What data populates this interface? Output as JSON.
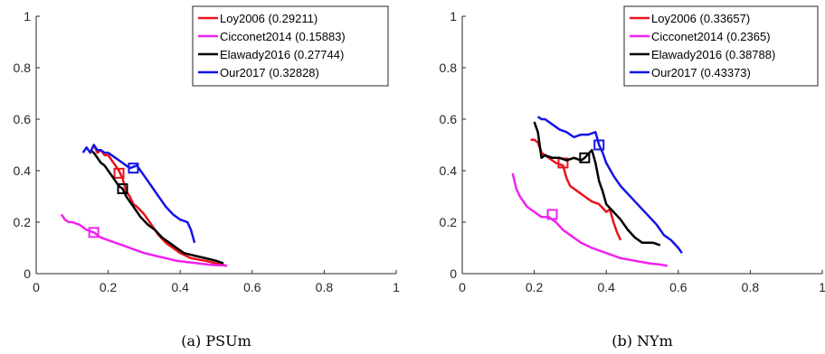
{
  "chart_data": [
    {
      "type": "line",
      "caption": "(a) PSUm",
      "xlim": [
        0,
        1
      ],
      "ylim": [
        0,
        1
      ],
      "xticks": [
        "0",
        "0.2",
        "0.4",
        "0.6",
        "0.8",
        "1"
      ],
      "yticks": [
        "0",
        "0.2",
        "0.4",
        "0.6",
        "0.8",
        "1"
      ],
      "legend_position": "top-right",
      "series": [
        {
          "name": "Loy2006 (0.29211)",
          "color": "#e8141a",
          "x": [
            0.15,
            0.16,
            0.17,
            0.18,
            0.19,
            0.2,
            0.21,
            0.22,
            0.23,
            0.24,
            0.25,
            0.26,
            0.27,
            0.28,
            0.3,
            0.32,
            0.34,
            0.36,
            0.38,
            0.4,
            0.43,
            0.47,
            0.5,
            0.53
          ],
          "y": [
            0.47,
            0.5,
            0.47,
            0.48,
            0.46,
            0.46,
            0.44,
            0.42,
            0.4,
            0.37,
            0.32,
            0.3,
            0.27,
            0.26,
            0.23,
            0.19,
            0.15,
            0.12,
            0.1,
            0.08,
            0.06,
            0.05,
            0.04,
            0.03
          ],
          "marker": [
            0.23,
            0.39
          ]
        },
        {
          "name": "Cicconet2014 (0.15883)",
          "color": "#ef22ef",
          "x": [
            0.07,
            0.08,
            0.09,
            0.1,
            0.12,
            0.14,
            0.16,
            0.18,
            0.2,
            0.22,
            0.24,
            0.26,
            0.28,
            0.3,
            0.33,
            0.36,
            0.39,
            0.42,
            0.45,
            0.48,
            0.5,
            0.52,
            0.53
          ],
          "y": [
            0.23,
            0.21,
            0.2,
            0.2,
            0.19,
            0.17,
            0.16,
            0.14,
            0.13,
            0.12,
            0.11,
            0.1,
            0.09,
            0.08,
            0.07,
            0.06,
            0.05,
            0.045,
            0.04,
            0.035,
            0.033,
            0.032,
            0.03
          ],
          "marker": [
            0.16,
            0.16
          ]
        },
        {
          "name": "Elawady2016 (0.27744)",
          "color": "#000000",
          "x": [
            0.15,
            0.16,
            0.17,
            0.18,
            0.19,
            0.2,
            0.21,
            0.22,
            0.23,
            0.24,
            0.25,
            0.27,
            0.29,
            0.31,
            0.33,
            0.35,
            0.37,
            0.39,
            0.41,
            0.44,
            0.47,
            0.5,
            0.52
          ],
          "y": [
            0.48,
            0.47,
            0.45,
            0.43,
            0.42,
            0.4,
            0.38,
            0.36,
            0.34,
            0.33,
            0.3,
            0.26,
            0.22,
            0.19,
            0.17,
            0.14,
            0.12,
            0.1,
            0.08,
            0.07,
            0.06,
            0.05,
            0.04
          ],
          "marker": [
            0.24,
            0.33
          ]
        },
        {
          "name": "Our2017 (0.32828)",
          "color": "#1414e6",
          "x": [
            0.13,
            0.14,
            0.15,
            0.16,
            0.17,
            0.18,
            0.19,
            0.2,
            0.22,
            0.24,
            0.26,
            0.28,
            0.3,
            0.32,
            0.34,
            0.36,
            0.38,
            0.4,
            0.42,
            0.43,
            0.44
          ],
          "y": [
            0.47,
            0.49,
            0.47,
            0.5,
            0.48,
            0.48,
            0.47,
            0.47,
            0.45,
            0.43,
            0.41,
            0.42,
            0.38,
            0.34,
            0.3,
            0.26,
            0.23,
            0.21,
            0.2,
            0.17,
            0.12
          ],
          "marker": [
            0.27,
            0.41
          ]
        }
      ]
    },
    {
      "type": "line",
      "caption": "(b) NYm",
      "xlim": [
        0,
        1
      ],
      "ylim": [
        0,
        1
      ],
      "xticks": [
        "0",
        "0.2",
        "0.4",
        "0.6",
        "0.8",
        "1"
      ],
      "yticks": [
        "0",
        "0.2",
        "0.4",
        "0.6",
        "0.8",
        "1"
      ],
      "legend_position": "top-right",
      "series": [
        {
          "name": "Loy2006 (0.33657)",
          "color": "#e8141a",
          "x": [
            0.19,
            0.2,
            0.21,
            0.22,
            0.23,
            0.24,
            0.26,
            0.28,
            0.29,
            0.3,
            0.32,
            0.34,
            0.36,
            0.38,
            0.4,
            0.41,
            0.42,
            0.43,
            0.44
          ],
          "y": [
            0.52,
            0.52,
            0.51,
            0.47,
            0.46,
            0.45,
            0.43,
            0.42,
            0.37,
            0.34,
            0.32,
            0.3,
            0.28,
            0.27,
            0.24,
            0.25,
            0.2,
            0.16,
            0.13
          ],
          "marker": [
            0.28,
            0.43
          ]
        },
        {
          "name": "Cicconet2014 (0.2365)",
          "color": "#ef22ef",
          "x": [
            0.14,
            0.15,
            0.16,
            0.17,
            0.18,
            0.2,
            0.22,
            0.24,
            0.26,
            0.28,
            0.3,
            0.33,
            0.36,
            0.4,
            0.44,
            0.48,
            0.52,
            0.55,
            0.57
          ],
          "y": [
            0.39,
            0.33,
            0.3,
            0.28,
            0.26,
            0.24,
            0.22,
            0.22,
            0.2,
            0.17,
            0.15,
            0.12,
            0.1,
            0.08,
            0.06,
            0.05,
            0.04,
            0.035,
            0.03
          ],
          "marker": [
            0.25,
            0.23
          ]
        },
        {
          "name": "Elawady2016 (0.38788)",
          "color": "#000000",
          "x": [
            0.2,
            0.21,
            0.22,
            0.23,
            0.25,
            0.27,
            0.29,
            0.31,
            0.33,
            0.34,
            0.36,
            0.37,
            0.38,
            0.39,
            0.4,
            0.42,
            0.44,
            0.46,
            0.48,
            0.5,
            0.53,
            0.55
          ],
          "y": [
            0.59,
            0.55,
            0.45,
            0.46,
            0.45,
            0.45,
            0.44,
            0.45,
            0.44,
            0.45,
            0.48,
            0.43,
            0.36,
            0.32,
            0.27,
            0.24,
            0.21,
            0.17,
            0.14,
            0.12,
            0.12,
            0.11
          ],
          "marker": [
            0.34,
            0.45
          ]
        },
        {
          "name": "Our2017 (0.43373)",
          "color": "#1414e6",
          "x": [
            0.21,
            0.22,
            0.23,
            0.25,
            0.27,
            0.29,
            0.31,
            0.33,
            0.35,
            0.37,
            0.38,
            0.39,
            0.4,
            0.42,
            0.44,
            0.46,
            0.48,
            0.5,
            0.52,
            0.54,
            0.56,
            0.58,
            0.6,
            0.61
          ],
          "y": [
            0.61,
            0.6,
            0.6,
            0.58,
            0.56,
            0.55,
            0.53,
            0.54,
            0.54,
            0.55,
            0.5,
            0.47,
            0.43,
            0.38,
            0.34,
            0.31,
            0.28,
            0.25,
            0.22,
            0.19,
            0.15,
            0.13,
            0.1,
            0.08
          ],
          "marker": [
            0.38,
            0.5
          ]
        }
      ]
    }
  ]
}
